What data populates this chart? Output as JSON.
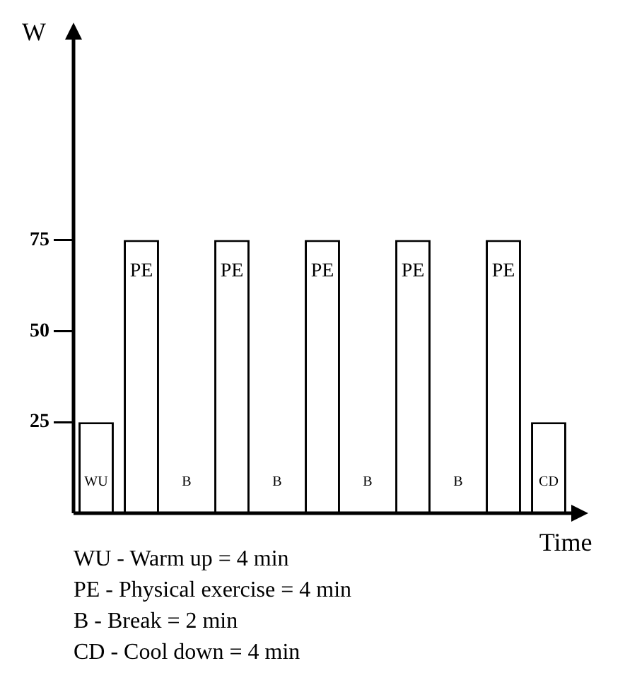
{
  "chart_data": {
    "type": "bar",
    "xlabel": "Time",
    "ylabel": "W",
    "categories": [
      "WU",
      "PE",
      "B",
      "PE",
      "B",
      "PE",
      "B",
      "PE",
      "B",
      "PE",
      "CD"
    ],
    "values": [
      25,
      75,
      0,
      75,
      0,
      75,
      0,
      75,
      0,
      75,
      25
    ],
    "color": "#ffffff",
    "ylim": [
      0,
      130
    ],
    "yticks": [
      25,
      50,
      75
    ],
    "grid": false,
    "annotations": [
      "WU - Warm up = 4 min",
      "PE - Physical exercise = 4 min",
      "B - Break = 2 min",
      "CD - Cool down = 4 min"
    ]
  }
}
